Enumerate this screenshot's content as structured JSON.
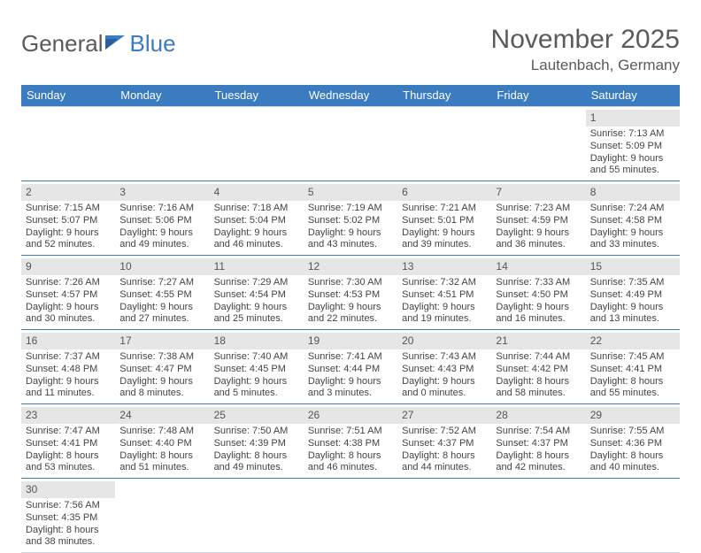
{
  "logo": {
    "part1": "General",
    "part2": "Blue"
  },
  "title": "November 2025",
  "location": "Lautenbach, Germany",
  "weekdays": [
    "Sunday",
    "Monday",
    "Tuesday",
    "Wednesday",
    "Thursday",
    "Friday",
    "Saturday"
  ],
  "colors": {
    "brand_blue": "#3b7bbf",
    "daynum_bg": "#e6e6e6",
    "text": "#444444"
  },
  "weeks": [
    [
      null,
      null,
      null,
      null,
      null,
      null,
      {
        "n": "1",
        "sr": "Sunrise: 7:13 AM",
        "ss": "Sunset: 5:09 PM",
        "d1": "Daylight: 9 hours",
        "d2": "and 55 minutes."
      }
    ],
    [
      {
        "n": "2",
        "sr": "Sunrise: 7:15 AM",
        "ss": "Sunset: 5:07 PM",
        "d1": "Daylight: 9 hours",
        "d2": "and 52 minutes."
      },
      {
        "n": "3",
        "sr": "Sunrise: 7:16 AM",
        "ss": "Sunset: 5:06 PM",
        "d1": "Daylight: 9 hours",
        "d2": "and 49 minutes."
      },
      {
        "n": "4",
        "sr": "Sunrise: 7:18 AM",
        "ss": "Sunset: 5:04 PM",
        "d1": "Daylight: 9 hours",
        "d2": "and 46 minutes."
      },
      {
        "n": "5",
        "sr": "Sunrise: 7:19 AM",
        "ss": "Sunset: 5:02 PM",
        "d1": "Daylight: 9 hours",
        "d2": "and 43 minutes."
      },
      {
        "n": "6",
        "sr": "Sunrise: 7:21 AM",
        "ss": "Sunset: 5:01 PM",
        "d1": "Daylight: 9 hours",
        "d2": "and 39 minutes."
      },
      {
        "n": "7",
        "sr": "Sunrise: 7:23 AM",
        "ss": "Sunset: 4:59 PM",
        "d1": "Daylight: 9 hours",
        "d2": "and 36 minutes."
      },
      {
        "n": "8",
        "sr": "Sunrise: 7:24 AM",
        "ss": "Sunset: 4:58 PM",
        "d1": "Daylight: 9 hours",
        "d2": "and 33 minutes."
      }
    ],
    [
      {
        "n": "9",
        "sr": "Sunrise: 7:26 AM",
        "ss": "Sunset: 4:57 PM",
        "d1": "Daylight: 9 hours",
        "d2": "and 30 minutes."
      },
      {
        "n": "10",
        "sr": "Sunrise: 7:27 AM",
        "ss": "Sunset: 4:55 PM",
        "d1": "Daylight: 9 hours",
        "d2": "and 27 minutes."
      },
      {
        "n": "11",
        "sr": "Sunrise: 7:29 AM",
        "ss": "Sunset: 4:54 PM",
        "d1": "Daylight: 9 hours",
        "d2": "and 25 minutes."
      },
      {
        "n": "12",
        "sr": "Sunrise: 7:30 AM",
        "ss": "Sunset: 4:53 PM",
        "d1": "Daylight: 9 hours",
        "d2": "and 22 minutes."
      },
      {
        "n": "13",
        "sr": "Sunrise: 7:32 AM",
        "ss": "Sunset: 4:51 PM",
        "d1": "Daylight: 9 hours",
        "d2": "and 19 minutes."
      },
      {
        "n": "14",
        "sr": "Sunrise: 7:33 AM",
        "ss": "Sunset: 4:50 PM",
        "d1": "Daylight: 9 hours",
        "d2": "and 16 minutes."
      },
      {
        "n": "15",
        "sr": "Sunrise: 7:35 AM",
        "ss": "Sunset: 4:49 PM",
        "d1": "Daylight: 9 hours",
        "d2": "and 13 minutes."
      }
    ],
    [
      {
        "n": "16",
        "sr": "Sunrise: 7:37 AM",
        "ss": "Sunset: 4:48 PM",
        "d1": "Daylight: 9 hours",
        "d2": "and 11 minutes."
      },
      {
        "n": "17",
        "sr": "Sunrise: 7:38 AM",
        "ss": "Sunset: 4:47 PM",
        "d1": "Daylight: 9 hours",
        "d2": "and 8 minutes."
      },
      {
        "n": "18",
        "sr": "Sunrise: 7:40 AM",
        "ss": "Sunset: 4:45 PM",
        "d1": "Daylight: 9 hours",
        "d2": "and 5 minutes."
      },
      {
        "n": "19",
        "sr": "Sunrise: 7:41 AM",
        "ss": "Sunset: 4:44 PM",
        "d1": "Daylight: 9 hours",
        "d2": "and 3 minutes."
      },
      {
        "n": "20",
        "sr": "Sunrise: 7:43 AM",
        "ss": "Sunset: 4:43 PM",
        "d1": "Daylight: 9 hours",
        "d2": "and 0 minutes."
      },
      {
        "n": "21",
        "sr": "Sunrise: 7:44 AM",
        "ss": "Sunset: 4:42 PM",
        "d1": "Daylight: 8 hours",
        "d2": "and 58 minutes."
      },
      {
        "n": "22",
        "sr": "Sunrise: 7:45 AM",
        "ss": "Sunset: 4:41 PM",
        "d1": "Daylight: 8 hours",
        "d2": "and 55 minutes."
      }
    ],
    [
      {
        "n": "23",
        "sr": "Sunrise: 7:47 AM",
        "ss": "Sunset: 4:41 PM",
        "d1": "Daylight: 8 hours",
        "d2": "and 53 minutes."
      },
      {
        "n": "24",
        "sr": "Sunrise: 7:48 AM",
        "ss": "Sunset: 4:40 PM",
        "d1": "Daylight: 8 hours",
        "d2": "and 51 minutes."
      },
      {
        "n": "25",
        "sr": "Sunrise: 7:50 AM",
        "ss": "Sunset: 4:39 PM",
        "d1": "Daylight: 8 hours",
        "d2": "and 49 minutes."
      },
      {
        "n": "26",
        "sr": "Sunrise: 7:51 AM",
        "ss": "Sunset: 4:38 PM",
        "d1": "Daylight: 8 hours",
        "d2": "and 46 minutes."
      },
      {
        "n": "27",
        "sr": "Sunrise: 7:52 AM",
        "ss": "Sunset: 4:37 PM",
        "d1": "Daylight: 8 hours",
        "d2": "and 44 minutes."
      },
      {
        "n": "28",
        "sr": "Sunrise: 7:54 AM",
        "ss": "Sunset: 4:37 PM",
        "d1": "Daylight: 8 hours",
        "d2": "and 42 minutes."
      },
      {
        "n": "29",
        "sr": "Sunrise: 7:55 AM",
        "ss": "Sunset: 4:36 PM",
        "d1": "Daylight: 8 hours",
        "d2": "and 40 minutes."
      }
    ],
    [
      {
        "n": "30",
        "sr": "Sunrise: 7:56 AM",
        "ss": "Sunset: 4:35 PM",
        "d1": "Daylight: 8 hours",
        "d2": "and 38 minutes."
      },
      null,
      null,
      null,
      null,
      null,
      null
    ]
  ]
}
